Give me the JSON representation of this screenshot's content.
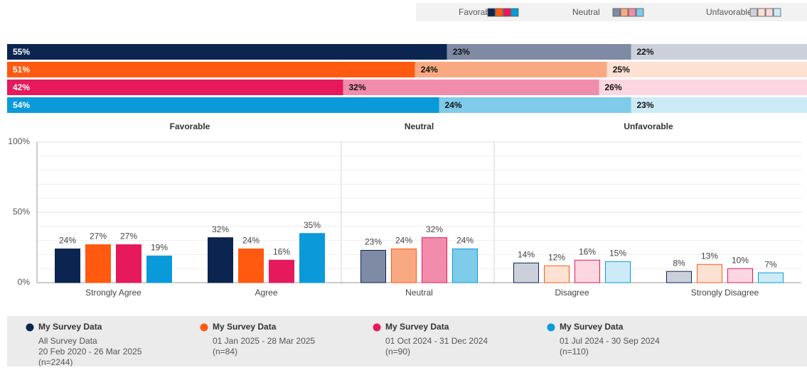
{
  "chart_data": [
    {
      "type": "stacked_bar_horizontal",
      "xlim": [
        0,
        100
      ],
      "series": [
        {
          "name": "Favorable",
          "colors": [
            "#0b2550",
            "#ff5a10",
            "#e5195c",
            "#0a9ad9"
          ],
          "values": [
            55,
            51,
            42,
            54
          ],
          "value_labels": [
            "55%",
            "51%",
            "42%",
            "54%"
          ]
        },
        {
          "name": "Neutral",
          "colors": [
            "#7f8ba5",
            "#f9a982",
            "#f18cac",
            "#7ecbea"
          ],
          "values": [
            23,
            24,
            32,
            24
          ],
          "value_labels": [
            "23%",
            "24%",
            "32%",
            "24%"
          ]
        },
        {
          "name": "Unfavorable",
          "colors": [
            "#ccd0da",
            "#fde1d3",
            "#fcd6e1",
            "#cdebf7"
          ],
          "values": [
            22,
            25,
            26,
            23
          ],
          "value_labels": [
            "22%",
            "25%",
            "26%",
            "23%"
          ]
        }
      ]
    },
    {
      "type": "bar",
      "sections": [
        "Favorable",
        "Neutral",
        "Unfavorable"
      ],
      "categories": [
        "Strongly Agree",
        "Agree",
        "Neutral",
        "Disagree",
        "Strongly Disagree"
      ],
      "ylim": [
        0,
        100
      ],
      "yticks": [
        {
          "value": 0,
          "label": "0%"
        },
        {
          "value": 50,
          "label": "50%"
        },
        {
          "value": 100,
          "label": "100%"
        }
      ],
      "series": [
        {
          "name": "My Survey Data",
          "color": "#0b2550",
          "colors": [
            "#0b2550",
            "#0b2550",
            "#7f8ba5",
            "#ccd0da",
            "#ccd0da"
          ],
          "details": [
            "All Survey Data",
            "20 Feb 2020 - 26 Mar 2025",
            "(n=2244)"
          ],
          "values": [
            24,
            32,
            23,
            14,
            8
          ],
          "value_labels": [
            "24%",
            "32%",
            "23%",
            "14%",
            "8%"
          ]
        },
        {
          "name": "My Survey Data",
          "color": "#ff5a10",
          "colors": [
            "#ff5a10",
            "#ff5a10",
            "#f9a982",
            "#fde1d3",
            "#fde1d3"
          ],
          "details": [
            "01 Jan 2025 - 28 Mar 2025",
            "(n=84)"
          ],
          "values": [
            27,
            24,
            24,
            12,
            13
          ],
          "value_labels": [
            "27%",
            "24%",
            "24%",
            "12%",
            "13%"
          ]
        },
        {
          "name": "My Survey Data",
          "color": "#e5195c",
          "colors": [
            "#e5195c",
            "#e5195c",
            "#f18cac",
            "#fcd6e1",
            "#fcd6e1"
          ],
          "details": [
            "01 Oct 2024 - 31 Dec 2024",
            "(n=90)"
          ],
          "values": [
            27,
            16,
            32,
            16,
            10
          ],
          "value_labels": [
            "27%",
            "16%",
            "32%",
            "16%",
            "10%"
          ]
        },
        {
          "name": "My Survey Data",
          "color": "#0a9ad9",
          "colors": [
            "#0a9ad9",
            "#0a9ad9",
            "#7ecbea",
            "#cdebf7",
            "#cdebf7"
          ],
          "details": [
            "01 Jul 2024 - 30 Sep 2024",
            "(n=110)"
          ],
          "values": [
            19,
            35,
            24,
            15,
            7
          ],
          "value_labels": [
            "19%",
            "35%",
            "24%",
            "15%",
            "7%"
          ]
        }
      ]
    }
  ]
}
